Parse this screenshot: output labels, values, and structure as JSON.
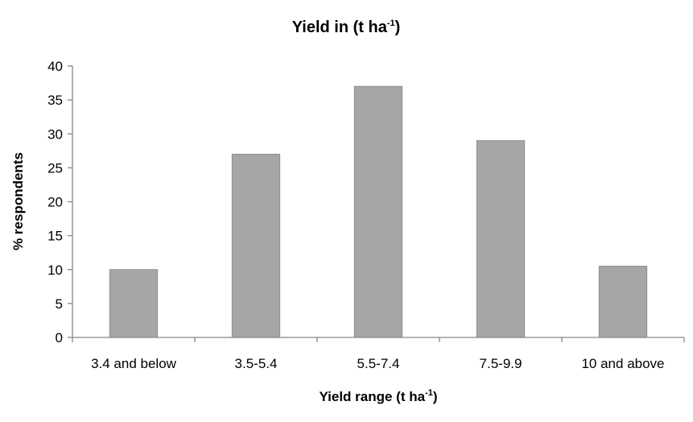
{
  "chart_data": {
    "type": "bar",
    "title": "Yield in (t ha",
    "title_superscript": "-1",
    "title_suffix": ")",
    "xlabel": "Yield range (t ha",
    "xlabel_superscript": "-1",
    "xlabel_suffix": ")",
    "ylabel": "% respondents",
    "categories": [
      "3.4 and below",
      "3.5-5.4",
      "5.5-7.4",
      "7.5-9.9",
      "10 and above"
    ],
    "values": [
      10,
      27,
      37,
      29,
      10.5
    ],
    "ylim": [
      0,
      40
    ],
    "yticks": [
      0,
      5,
      10,
      15,
      20,
      25,
      30,
      35,
      40
    ],
    "grid": false,
    "legend": "none",
    "colors": {
      "bar": "#a6a6a6",
      "bar_edge": "#8c8c8c",
      "axis": "#868686"
    }
  }
}
